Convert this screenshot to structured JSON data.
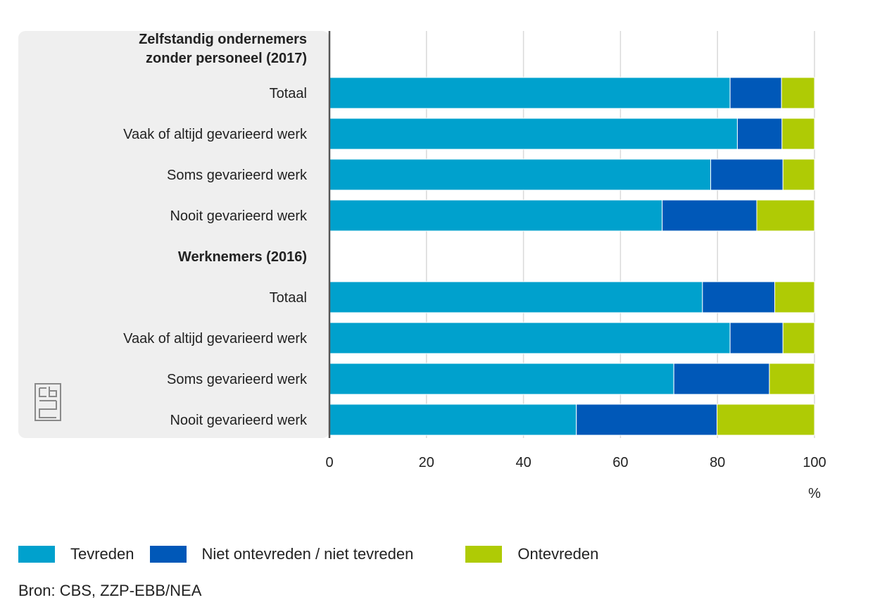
{
  "chart_data": {
    "type": "bar",
    "orientation": "horizontal",
    "stacked": true,
    "categories": [
      {
        "label": "Zelfstandig ondernemers zonder personeel (2017)",
        "lines": [
          "Zelfstandig ondernemers",
          "zonder personeel (2017)"
        ],
        "is_group": true
      },
      {
        "label": "Totaal",
        "lines": [
          "Totaal"
        ],
        "is_group": false
      },
      {
        "label": "Vaak of altijd gevarieerd werk",
        "lines": [
          "Vaak of altijd gevarieerd werk"
        ],
        "is_group": false
      },
      {
        "label": "Soms gevarieerd werk",
        "lines": [
          "Soms gevarieerd werk"
        ],
        "is_group": false
      },
      {
        "label": "Nooit gevarieerd werk",
        "lines": [
          "Nooit gevarieerd werk"
        ],
        "is_group": false
      },
      {
        "label": "Werknemers (2016)",
        "lines": [
          "Werknemers (2016)"
        ],
        "is_group": true
      },
      {
        "label": "Totaal",
        "lines": [
          "Totaal"
        ],
        "is_group": false
      },
      {
        "label": "Vaak of altijd gevarieerd werk",
        "lines": [
          "Vaak of altijd gevarieerd werk"
        ],
        "is_group": false
      },
      {
        "label": "Soms gevarieerd werk",
        "lines": [
          "Soms gevarieerd werk"
        ],
        "is_group": false
      },
      {
        "label": "Nooit gevarieerd werk",
        "lines": [
          "Nooit gevarieerd werk"
        ],
        "is_group": false
      }
    ],
    "series": [
      {
        "name": "Tevreden",
        "color": "#00a1cd",
        "values": [
          null,
          82.6,
          84.1,
          78.6,
          68.6,
          null,
          76.9,
          82.6,
          71.0,
          50.9
        ]
      },
      {
        "name": "Niet ontevreden / niet tevreden",
        "color": "#0058b8",
        "values": [
          null,
          10.6,
          9.2,
          14.9,
          19.5,
          null,
          14.9,
          10.9,
          19.7,
          29.0
        ]
      },
      {
        "name": "Ontevreden",
        "color": "#afcb05",
        "values": [
          null,
          6.8,
          6.7,
          6.5,
          11.9,
          null,
          8.2,
          6.5,
          9.3,
          20.1
        ]
      }
    ],
    "x_ticks": [
      0,
      20,
      40,
      60,
      80,
      100
    ],
    "xlim": [
      0,
      100
    ],
    "xlabel": "%",
    "grid": true,
    "legend_position": "bottom"
  },
  "logo": {
    "text": "cbs"
  },
  "source": "Bron: CBS, ZZP-EBB/NEA"
}
